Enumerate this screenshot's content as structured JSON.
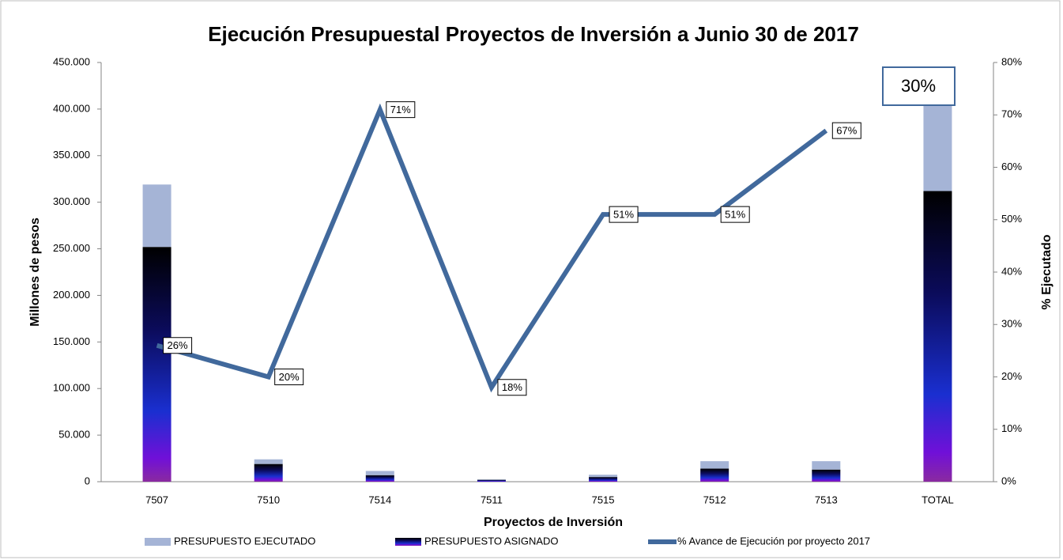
{
  "chart_data": {
    "type": "bar",
    "stacked": true,
    "title": "Ejecución Presupuestal Proyectos de Inversión a Junio 30 de 2017",
    "x_label": "Proyectos de Inversión",
    "y_label": "Millones de pesos",
    "y2_label": "% Ejecutado",
    "annotation": "30%",
    "categories": [
      "7507",
      "7510",
      "7514",
      "7511",
      "7515",
      "7512",
      "7513",
      "TOTAL"
    ],
    "series": [
      {
        "name": "PRESUPUESTO EJECUTADO",
        "type": "bar",
        "color": "#a5b4d6",
        "values": [
          67000,
          5000,
          4500,
          500,
          2500,
          8000,
          9000,
          94000
        ]
      },
      {
        "name": "PRESUPUESTO ASIGNADO",
        "type": "bar",
        "color": "gradient",
        "values": [
          252000,
          19000,
          7000,
          2000,
          5000,
          14000,
          13000,
          312000
        ]
      },
      {
        "name": "% Avance de Ejecución por proyecto 2017",
        "type": "line",
        "axis": "y2",
        "color": "#41699c",
        "values": [
          26,
          20,
          71,
          18,
          51,
          51,
          67,
          null
        ],
        "value_labels": [
          "26%",
          "20%",
          "71%",
          "18%",
          "51%",
          "51%",
          "67%",
          null
        ]
      }
    ],
    "ylim": [
      0,
      450000
    ],
    "yticks": [
      {
        "value": 0,
        "label": "0"
      },
      {
        "value": 50000,
        "label": "50.000"
      },
      {
        "value": 100000,
        "label": "100.000"
      },
      {
        "value": 150000,
        "label": "150.000"
      },
      {
        "value": 200000,
        "label": "200.000"
      },
      {
        "value": 250000,
        "label": "250.000"
      },
      {
        "value": 300000,
        "label": "300.000"
      },
      {
        "value": 350000,
        "label": "350.000"
      },
      {
        "value": 400000,
        "label": "400.000"
      },
      {
        "value": 450000,
        "label": "450.000"
      }
    ],
    "y2lim": [
      0,
      80
    ],
    "y2ticks": [
      {
        "value": 0,
        "label": "0%"
      },
      {
        "value": 10,
        "label": "10%"
      },
      {
        "value": 20,
        "label": "20%"
      },
      {
        "value": 30,
        "label": "30%"
      },
      {
        "value": 40,
        "label": "40%"
      },
      {
        "value": 50,
        "label": "50%"
      },
      {
        "value": 60,
        "label": "60%"
      },
      {
        "value": 70,
        "label": "70%"
      },
      {
        "value": 80,
        "label": "80%"
      }
    ],
    "grid": false,
    "legend": "bottom"
  }
}
